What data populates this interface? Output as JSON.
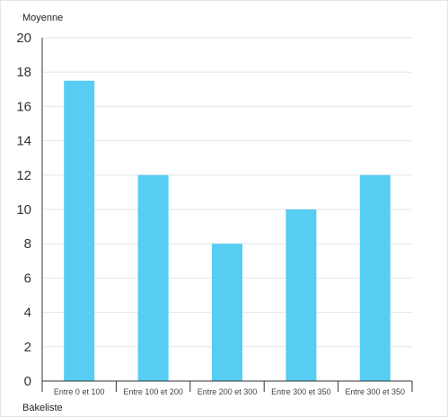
{
  "chart_data": {
    "type": "bar",
    "ylabel": "Moyenne",
    "xlabel": "Bakeliste",
    "categories": [
      "Entre 0 et 100",
      "Entre 100 et 200",
      "Entre 200 et 300",
      "Entre 300 et 350",
      "Entre 300 et 350"
    ],
    "values": [
      17.5,
      12,
      8,
      10,
      12
    ],
    "ylim": [
      0,
      20
    ],
    "yticks": [
      0,
      2,
      4,
      6,
      8,
      10,
      12,
      14,
      16,
      18,
      20
    ],
    "grid": true,
    "bar_color": "#57cdf3",
    "grid_color": "#e6e6e6",
    "axis_color": "#333333"
  }
}
